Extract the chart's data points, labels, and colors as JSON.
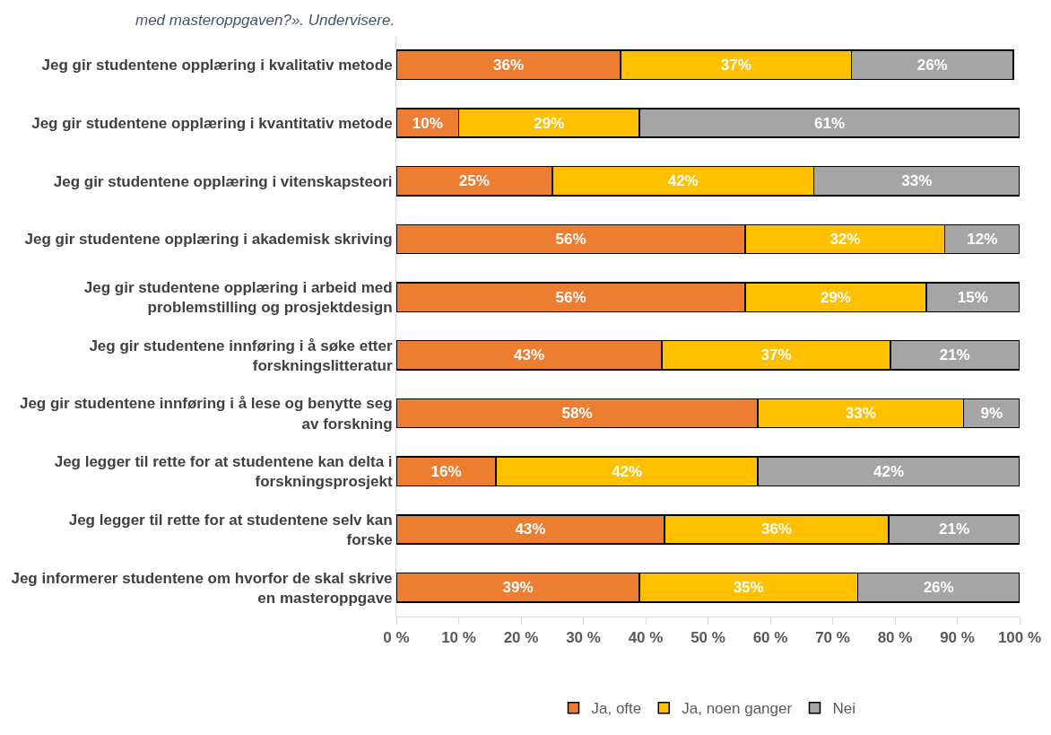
{
  "chart_data": {
    "type": "bar",
    "orientation": "horizontal",
    "stacked": true,
    "annotations": [
      "med masteroppgaven?». Undervisere."
    ],
    "categories": [
      "Jeg gir studentene opplæring i kvalitativ metode",
      "Jeg gir studentene opplæring i kvantitativ metode",
      "Jeg gir studentene opplæring i vitenskapsteori",
      "Jeg gir studentene opplæring i akademisk skriving",
      "Jeg gir studentene opplæring i arbeid med problemstilling og prosjektdesign",
      "Jeg gir studentene innføring i å søke etter forskningslitteratur",
      "Jeg gir studentene innføring i å lese og benytte seg av forskning",
      "Jeg legger til rette for at studentene kan delta i forskningsprosjekt",
      "Jeg legger til rette for at studentene selv kan forske",
      "Jeg informerer studentene om hvorfor de skal skrive en masteroppgave"
    ],
    "series": [
      {
        "name": "Ja, ofte",
        "color": "#ed7d31",
        "values": [
          36,
          10,
          25,
          56,
          56,
          42.6,
          58,
          16,
          43,
          39
        ],
        "value_labels": [
          "36%",
          "10%",
          "25%",
          "56%",
          "56%",
          "43%",
          "58%",
          "16%",
          "43%",
          "39%"
        ]
      },
      {
        "name": "Ja, noen ganger",
        "color": "#ffc000",
        "values": [
          37,
          29,
          42,
          32,
          29,
          36.7,
          33,
          42,
          36,
          35
        ],
        "value_labels": [
          "37%",
          "29%",
          "42%",
          "32%",
          "29%",
          "37%",
          "33%",
          "42%",
          "36%",
          "35%"
        ]
      },
      {
        "name": "Nei",
        "color": "#a5a5a5",
        "values": [
          26,
          61,
          33,
          12,
          15,
          20.6,
          9,
          42,
          21,
          26
        ],
        "value_labels": [
          "26%",
          "61%",
          "33%",
          "12%",
          "15%",
          "21%",
          "9%",
          "42%",
          "21%",
          "26%"
        ]
      }
    ],
    "xlim": [
      0,
      100
    ],
    "xticks": [
      {
        "value": 0,
        "label": "0 %"
      },
      {
        "value": 10,
        "label": "10 %"
      },
      {
        "value": 20,
        "label": "20 %"
      },
      {
        "value": 30,
        "label": "30 %"
      },
      {
        "value": 40,
        "label": "40 %"
      },
      {
        "value": 50,
        "label": "50 %"
      },
      {
        "value": 60,
        "label": "60 %"
      },
      {
        "value": 70,
        "label": "70 %"
      },
      {
        "value": 80,
        "label": "80 %"
      },
      {
        "value": 90,
        "label": "90 %"
      },
      {
        "value": 100,
        "label": "100 %"
      }
    ],
    "grid": false,
    "legend": "bottom"
  }
}
